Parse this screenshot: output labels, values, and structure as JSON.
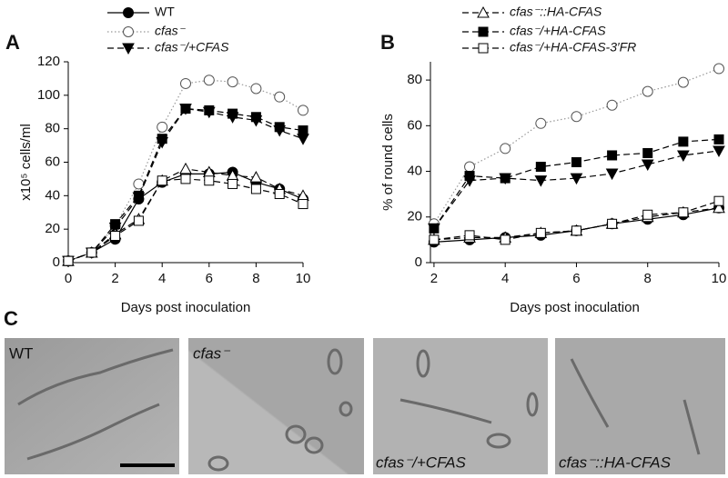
{
  "chart_data": [
    {
      "type": "line",
      "panel": "A",
      "xlabel": "Days post inoculation",
      "ylabel": "x10⁵ cells/ml",
      "x": [
        0,
        1,
        2,
        3,
        4,
        5,
        6,
        7,
        8,
        9,
        10
      ],
      "xlim": [
        0,
        10
      ],
      "xticks": [
        0,
        2,
        4,
        6,
        8,
        10
      ],
      "ylim": [
        0,
        120
      ],
      "yticks": [
        0,
        20,
        40,
        60,
        80,
        100,
        120
      ],
      "series": [
        {
          "name": "WT",
          "marker": "circle",
          "filled": true,
          "dash": "solid",
          "color": "#000000",
          "values": [
            1,
            6,
            14,
            38,
            48,
            53,
            53,
            54,
            48,
            44,
            38
          ]
        },
        {
          "name": "cfas⁻",
          "marker": "circle",
          "filled": false,
          "dash": "dotted",
          "color": "#999999",
          "values": [
            1,
            6,
            22,
            47,
            81,
            107,
            109,
            108,
            104,
            99,
            91
          ]
        },
        {
          "name": "cfas⁻/+CFAS",
          "marker": "triangle-down",
          "filled": true,
          "dash": "dashed",
          "color": "#000000",
          "values": [
            1,
            6,
            21,
            39,
            72,
            92,
            90,
            87,
            85,
            79,
            74
          ]
        },
        {
          "name": "cfas⁻::HA-CFAS",
          "marker": "triangle",
          "filled": false,
          "dash": "dashed",
          "color": "#000000",
          "values": [
            1,
            6,
            17,
            26,
            49,
            56,
            54,
            52,
            51,
            44,
            40
          ]
        },
        {
          "name": "cfas⁻/+HA-CFAS",
          "marker": "square",
          "filled": true,
          "dash": "dashed",
          "color": "#000000",
          "values": [
            1,
            6,
            23,
            40,
            74,
            92,
            91,
            89,
            87,
            81,
            79
          ]
        },
        {
          "name": "cfas⁻/+HA-CFAS-3′FR",
          "marker": "square",
          "filled": false,
          "dash": "dashed",
          "color": "#000000",
          "values": [
            1,
            6,
            16,
            25,
            49,
            50,
            49,
            47,
            44,
            41,
            35
          ]
        }
      ]
    },
    {
      "type": "line",
      "panel": "B",
      "xlabel": "Days post inoculation",
      "ylabel": "% of round cells",
      "x": [
        2,
        3,
        4,
        5,
        6,
        7,
        8,
        9,
        10
      ],
      "xlim": [
        1.9,
        10
      ],
      "xticks": [
        2,
        4,
        6,
        8,
        10
      ],
      "ylim": [
        0,
        88
      ],
      "yticks": [
        0,
        20,
        40,
        60,
        80
      ],
      "series": [
        {
          "marker": "circle",
          "filled": true,
          "dash": "solid",
          "color": "#000000",
          "values": [
            9,
            10,
            11,
            12,
            14,
            17,
            19,
            21,
            24
          ]
        },
        {
          "marker": "circle",
          "filled": false,
          "dash": "dotted",
          "color": "#999999",
          "values": [
            17,
            42,
            50,
            61,
            64,
            69,
            75,
            79,
            85
          ]
        },
        {
          "marker": "triangle-down",
          "filled": true,
          "dash": "dashed",
          "color": "#000000",
          "values": [
            15,
            36,
            37,
            36,
            37,
            39,
            43,
            47,
            49
          ]
        },
        {
          "marker": "triangle",
          "filled": false,
          "dash": "dashed",
          "color": "#000000",
          "values": [
            10,
            11,
            11,
            13,
            14,
            17,
            20,
            22,
            24
          ]
        },
        {
          "marker": "square",
          "filled": true,
          "dash": "dashed",
          "color": "#000000",
          "values": [
            15,
            38,
            37,
            42,
            44,
            47,
            48,
            53,
            54
          ]
        },
        {
          "marker": "square",
          "filled": false,
          "dash": "dashed",
          "color": "#000000",
          "values": [
            10,
            12,
            10,
            13,
            14,
            17,
            21,
            22,
            27
          ]
        }
      ]
    }
  ],
  "figure": {
    "panel_c": "C",
    "images": [
      {
        "label": "WT"
      },
      {
        "label": "cfas⁻"
      },
      {
        "label": "cfas⁻/+CFAS"
      },
      {
        "label": "cfas⁻::HA-CFAS"
      }
    ]
  }
}
